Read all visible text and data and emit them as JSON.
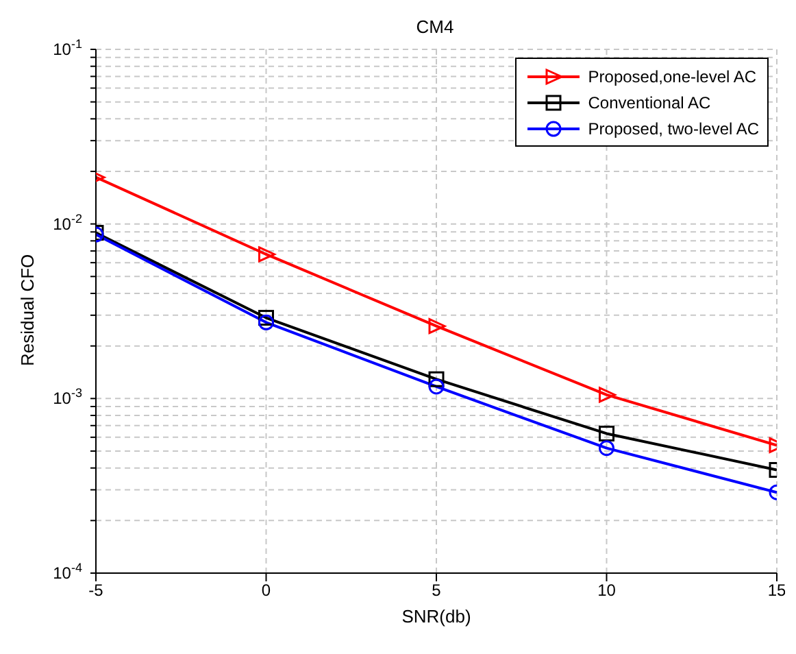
{
  "chart_data": {
    "type": "line",
    "title": "CM4",
    "xlabel": "SNR(db)",
    "ylabel": "Residual CFO",
    "x": [
      -5,
      0,
      5,
      10,
      15
    ],
    "series": [
      {
        "name": "Proposed,one-level AC",
        "color": "#ff0000",
        "marker": "triangle",
        "values": [
          0.0185,
          0.0067,
          0.0026,
          0.00105,
          0.00054
        ]
      },
      {
        "name": "Conventional AC",
        "color": "#000000",
        "marker": "square",
        "values": [
          0.0089,
          0.0029,
          0.00129,
          0.00063,
          0.00039
        ]
      },
      {
        "name": "Proposed, two-level AC",
        "color": "#0000ff",
        "marker": "circle",
        "values": [
          0.0087,
          0.00273,
          0.00117,
          0.00052,
          0.00029
        ]
      }
    ],
    "log": "y",
    "xlim": [
      -5,
      15
    ],
    "xticks": [
      -5,
      0,
      5,
      10,
      15
    ],
    "ylim": [
      0.0001,
      0.1
    ],
    "yticks": [
      {
        "value": 0.0001,
        "label": "10$^{-4}$"
      },
      {
        "value": 0.0002,
        "label": null
      },
      {
        "value": 0.0003,
        "label": null
      },
      {
        "value": 0.0004,
        "label": null
      },
      {
        "value": 0.0005,
        "label": null
      },
      {
        "value": 0.0006,
        "label": null
      },
      {
        "value": 0.0007,
        "label": null
      },
      {
        "value": 0.0008,
        "label": null
      },
      {
        "value": 0.0009,
        "label": null
      },
      {
        "value": 0.001,
        "label": "10$^{-3}$"
      },
      {
        "value": 0.002,
        "label": null
      },
      {
        "value": 0.003,
        "label": null
      },
      {
        "value": 0.004,
        "label": null
      },
      {
        "value": 0.005,
        "label": null
      },
      {
        "value": 0.006,
        "label": null
      },
      {
        "value": 0.007,
        "label": null
      },
      {
        "value": 0.008,
        "label": null
      },
      {
        "value": 0.009,
        "label": null
      },
      {
        "value": 0.01,
        "label": "10$^{-2}$"
      },
      {
        "value": 0.02,
        "label": null
      },
      {
        "value": 0.03,
        "label": null
      },
      {
        "value": 0.04,
        "label": null
      },
      {
        "value": 0.05,
        "label": null
      },
      {
        "value": 0.06,
        "label": null
      },
      {
        "value": 0.07,
        "label": null
      },
      {
        "value": 0.08,
        "label": null
      },
      {
        "value": 0.09,
        "label": null
      },
      {
        "value": 0.1,
        "label": "10$^{-1}$"
      }
    ],
    "grid": true,
    "legend": "top right",
    "line_style": "solid"
  }
}
